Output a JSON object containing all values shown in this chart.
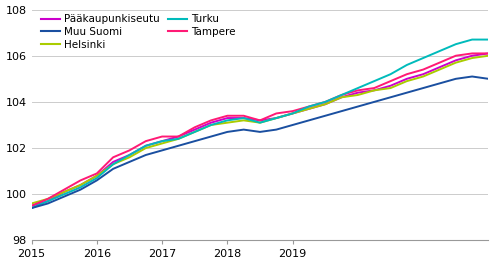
{
  "series": {
    "Pääkaupunkiseutu": {
      "color": "#cc00cc",
      "data": [
        99.5,
        99.7,
        100.1,
        100.4,
        100.8,
        101.4,
        101.7,
        102.1,
        102.3,
        102.5,
        102.8,
        103.1,
        103.3,
        103.3,
        103.2,
        103.3,
        103.5,
        103.7,
        103.9,
        104.2,
        104.4,
        104.5,
        104.7,
        105.0,
        105.2,
        105.5,
        105.8,
        106.0,
        106.1
      ]
    },
    "Helsinki": {
      "color": "#aacc00",
      "data": [
        99.6,
        99.8,
        100.1,
        100.4,
        100.8,
        101.3,
        101.6,
        102.0,
        102.2,
        102.4,
        102.7,
        103.0,
        103.1,
        103.2,
        103.1,
        103.3,
        103.5,
        103.7,
        103.9,
        104.2,
        104.3,
        104.5,
        104.6,
        104.9,
        105.1,
        105.4,
        105.7,
        105.9,
        106.0
      ]
    },
    "Tampere": {
      "color": "#ff1a75",
      "data": [
        99.5,
        99.8,
        100.2,
        100.6,
        100.9,
        101.6,
        101.9,
        102.3,
        102.5,
        102.5,
        102.9,
        103.2,
        103.4,
        103.4,
        103.2,
        103.5,
        103.6,
        103.8,
        104.0,
        104.3,
        104.5,
        104.6,
        104.9,
        105.2,
        105.4,
        105.7,
        106.0,
        106.1,
        106.1
      ]
    },
    "Muu Suomi": {
      "color": "#1a4fa0",
      "data": [
        99.4,
        99.6,
        99.9,
        100.2,
        100.6,
        101.1,
        101.4,
        101.7,
        101.9,
        102.1,
        102.3,
        102.5,
        102.7,
        102.8,
        102.7,
        102.8,
        103.0,
        103.2,
        103.4,
        103.6,
        103.8,
        104.0,
        104.2,
        104.4,
        104.6,
        104.8,
        105.0,
        105.1,
        105.0
      ]
    },
    "Turku": {
      "color": "#00bbbb",
      "data": [
        99.4,
        99.7,
        100.0,
        100.3,
        100.7,
        101.3,
        101.7,
        102.1,
        102.3,
        102.4,
        102.7,
        103.0,
        103.2,
        103.3,
        103.1,
        103.3,
        103.5,
        103.8,
        104.0,
        104.3,
        104.6,
        104.9,
        105.2,
        105.6,
        105.9,
        106.2,
        106.5,
        106.7,
        106.7
      ]
    }
  },
  "x_start": 2015.0,
  "x_step": 0.25,
  "n_points": 29,
  "ylim": [
    98,
    108
  ],
  "yticks": [
    98,
    100,
    102,
    104,
    106,
    108
  ],
  "xticks": [
    2015,
    2016,
    2017,
    2018,
    2019
  ],
  "plot_order": [
    "Pääkaupunkiseutu",
    "Helsinki",
    "Tampere",
    "Turku",
    "Muu Suomi"
  ],
  "legend_order": [
    "Pääkaupunkiseutu",
    "Muu Suomi",
    "Helsinki",
    "Turku",
    "Tampere"
  ]
}
